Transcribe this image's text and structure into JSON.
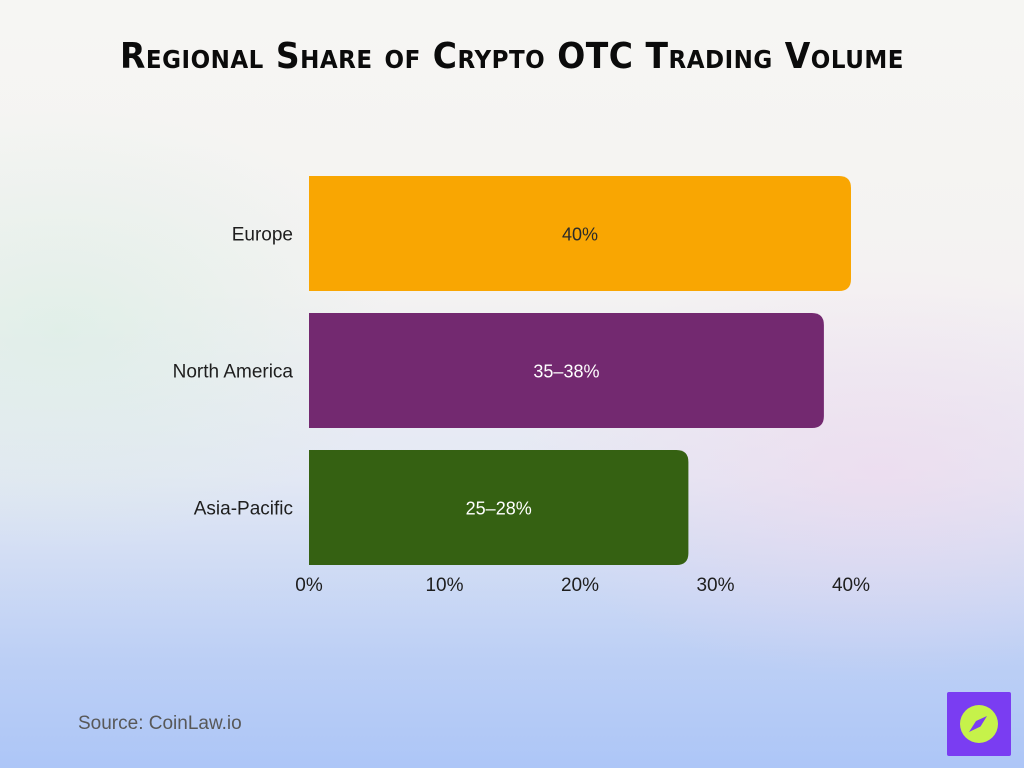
{
  "chart_data": {
    "type": "bar",
    "orientation": "horizontal",
    "title": "Regional Share of Crypto OTC Trading Volume",
    "categories": [
      "Europe",
      "North America",
      "Asia-Pacific"
    ],
    "values": [
      40,
      38,
      28
    ],
    "data_labels": [
      "40%",
      "35–38%",
      "25–28%"
    ],
    "colors": [
      "#f9a602",
      "#732970",
      "#356112"
    ],
    "label_colors": [
      "#2a2a2a",
      "#ffffff",
      "#ffffff"
    ],
    "xlim": [
      0,
      40
    ],
    "xticks": [
      0,
      10,
      20,
      30,
      40
    ],
    "xtick_labels": [
      "0%",
      "10%",
      "20%",
      "30%",
      "40%"
    ],
    "grid": false,
    "legend": "none"
  },
  "source": "Source: CoinLaw.io",
  "logo": {
    "icon": "compass-icon",
    "background": "#7a3df2",
    "accent": "#c6f24a"
  }
}
